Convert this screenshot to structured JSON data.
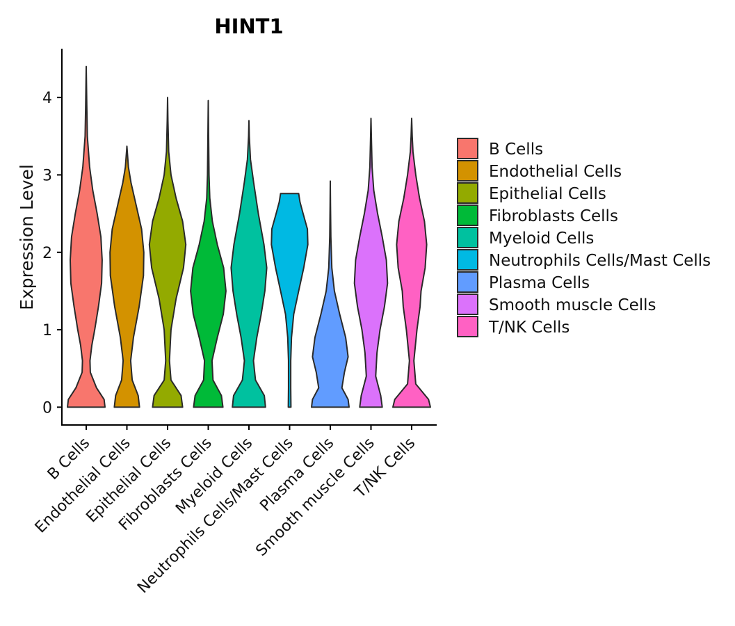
{
  "chart_data": {
    "type": "violin",
    "title": "HINT1",
    "xlabel": "",
    "ylabel": "Expression Level",
    "ylim": [
      -0.23,
      4.63
    ],
    "yticks": [
      0,
      1,
      2,
      3,
      4
    ],
    "legend_position": "right",
    "categories": [
      "B Cells",
      "Endothelial Cells",
      "Epithelial Cells",
      "Fibroblasts Cells",
      "Myeloid Cells",
      "Neutrophils Cells/Mast Cells",
      "Plasma Cells",
      "Smooth muscle Cells",
      "T/NK Cells"
    ],
    "series": [
      {
        "name": "B Cells",
        "color": "#F8766D",
        "max": 4.4,
        "profile": [
          [
            0,
            1.0
          ],
          [
            0.1,
            0.95
          ],
          [
            0.25,
            0.55
          ],
          [
            0.45,
            0.22
          ],
          [
            0.6,
            0.2
          ],
          [
            0.8,
            0.3
          ],
          [
            1.0,
            0.45
          ],
          [
            1.3,
            0.65
          ],
          [
            1.6,
            0.82
          ],
          [
            1.9,
            0.85
          ],
          [
            2.2,
            0.78
          ],
          [
            2.5,
            0.58
          ],
          [
            2.8,
            0.35
          ],
          [
            3.1,
            0.18
          ],
          [
            3.5,
            0.06
          ],
          [
            3.9,
            0.03
          ],
          [
            4.4,
            0.0
          ]
        ]
      },
      {
        "name": "Endothelial Cells",
        "color": "#D39200",
        "max": 3.37,
        "profile": [
          [
            0,
            0.67
          ],
          [
            0.15,
            0.6
          ],
          [
            0.35,
            0.28
          ],
          [
            0.6,
            0.2
          ],
          [
            0.9,
            0.35
          ],
          [
            1.3,
            0.65
          ],
          [
            1.7,
            0.88
          ],
          [
            2.0,
            0.9
          ],
          [
            2.3,
            0.78
          ],
          [
            2.6,
            0.5
          ],
          [
            2.9,
            0.22
          ],
          [
            3.1,
            0.08
          ],
          [
            3.37,
            0.0
          ]
        ]
      },
      {
        "name": "Epithelial Cells",
        "color": "#93AA00",
        "max": 4.0,
        "profile": [
          [
            0,
            0.8
          ],
          [
            0.15,
            0.72
          ],
          [
            0.35,
            0.18
          ],
          [
            0.6,
            0.1
          ],
          [
            1.0,
            0.18
          ],
          [
            1.4,
            0.45
          ],
          [
            1.8,
            0.85
          ],
          [
            2.1,
            0.97
          ],
          [
            2.4,
            0.8
          ],
          [
            2.7,
            0.45
          ],
          [
            3.0,
            0.18
          ],
          [
            3.3,
            0.06
          ],
          [
            3.7,
            0.02
          ],
          [
            4.0,
            0.0
          ]
        ]
      },
      {
        "name": "Fibroblasts Cells",
        "color": "#00BA38",
        "max": 3.96,
        "profile": [
          [
            0,
            0.78
          ],
          [
            0.15,
            0.7
          ],
          [
            0.35,
            0.25
          ],
          [
            0.6,
            0.2
          ],
          [
            0.9,
            0.48
          ],
          [
            1.2,
            0.8
          ],
          [
            1.5,
            0.94
          ],
          [
            1.8,
            0.82
          ],
          [
            2.1,
            0.48
          ],
          [
            2.4,
            0.22
          ],
          [
            2.7,
            0.08
          ],
          [
            3.0,
            0.04
          ],
          [
            3.5,
            0.02
          ],
          [
            3.96,
            0.0
          ]
        ]
      },
      {
        "name": "Myeloid Cells",
        "color": "#00C19F",
        "max": 3.7,
        "profile": [
          [
            0,
            0.88
          ],
          [
            0.15,
            0.82
          ],
          [
            0.35,
            0.35
          ],
          [
            0.6,
            0.24
          ],
          [
            0.9,
            0.42
          ],
          [
            1.2,
            0.65
          ],
          [
            1.5,
            0.85
          ],
          [
            1.8,
            0.95
          ],
          [
            2.1,
            0.8
          ],
          [
            2.5,
            0.5
          ],
          [
            2.9,
            0.25
          ],
          [
            3.2,
            0.08
          ],
          [
            3.5,
            0.02
          ],
          [
            3.7,
            0.0
          ]
        ]
      },
      {
        "name": "Neutrophils Cells/Mast Cells",
        "color": "#00B9E3",
        "max": 2.76,
        "profile": [
          [
            0,
            0.07
          ],
          [
            0.25,
            0.06
          ],
          [
            0.6,
            0.06
          ],
          [
            0.9,
            0.1
          ],
          [
            1.2,
            0.22
          ],
          [
            1.5,
            0.48
          ],
          [
            1.8,
            0.75
          ],
          [
            2.1,
            0.97
          ],
          [
            2.3,
            0.95
          ],
          [
            2.5,
            0.72
          ],
          [
            2.65,
            0.55
          ],
          [
            2.76,
            0.48
          ]
        ]
      },
      {
        "name": "Plasma Cells",
        "color": "#619CFF",
        "max": 2.92,
        "profile": [
          [
            0,
            1.0
          ],
          [
            0.1,
            0.95
          ],
          [
            0.25,
            0.62
          ],
          [
            0.45,
            0.75
          ],
          [
            0.65,
            0.95
          ],
          [
            0.9,
            0.82
          ],
          [
            1.2,
            0.5
          ],
          [
            1.5,
            0.22
          ],
          [
            1.8,
            0.08
          ],
          [
            2.2,
            0.03
          ],
          [
            2.6,
            0.01
          ],
          [
            2.92,
            0.0
          ]
        ]
      },
      {
        "name": "Smooth muscle Cells",
        "color": "#DB72FB",
        "max": 3.73,
        "profile": [
          [
            0,
            0.6
          ],
          [
            0.15,
            0.52
          ],
          [
            0.4,
            0.25
          ],
          [
            0.7,
            0.32
          ],
          [
            1.0,
            0.48
          ],
          [
            1.3,
            0.72
          ],
          [
            1.6,
            0.88
          ],
          [
            1.9,
            0.82
          ],
          [
            2.2,
            0.6
          ],
          [
            2.5,
            0.35
          ],
          [
            2.8,
            0.15
          ],
          [
            3.1,
            0.06
          ],
          [
            3.4,
            0.03
          ],
          [
            3.73,
            0.0
          ]
        ]
      },
      {
        "name": "T/NK Cells",
        "color": "#FF61C3",
        "max": 3.73,
        "profile": [
          [
            0,
            1.0
          ],
          [
            0.1,
            0.9
          ],
          [
            0.3,
            0.22
          ],
          [
            0.6,
            0.12
          ],
          [
            1.0,
            0.28
          ],
          [
            1.3,
            0.45
          ],
          [
            1.5,
            0.5
          ],
          [
            1.8,
            0.72
          ],
          [
            2.1,
            0.8
          ],
          [
            2.4,
            0.68
          ],
          [
            2.7,
            0.42
          ],
          [
            3.0,
            0.22
          ],
          [
            3.3,
            0.07
          ],
          [
            3.5,
            0.03
          ],
          [
            3.73,
            0.0
          ]
        ]
      }
    ]
  }
}
